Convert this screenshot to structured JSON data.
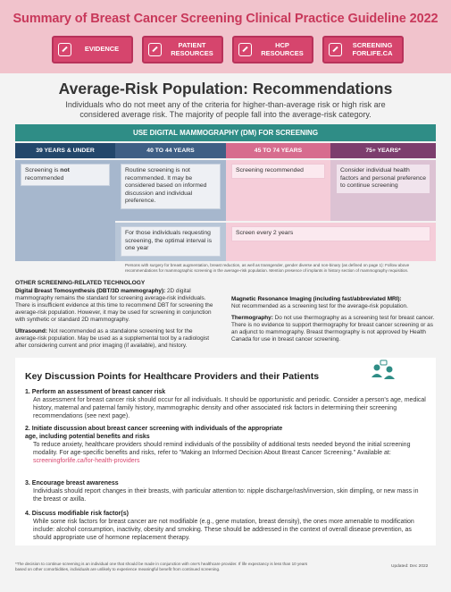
{
  "header": {
    "title": "Summary of Breast Cancer Screening Clinical Practice Guideline 2022",
    "nav": [
      {
        "label": "EVIDENCE",
        "icon": "link-icon"
      },
      {
        "label": "PATIENT RESOURCES",
        "icon": "link-icon"
      },
      {
        "label": "HCP RESOURCES",
        "icon": "link-icon"
      },
      {
        "label": "SCREENING FORLIFE.CA",
        "icon": "link-icon"
      }
    ]
  },
  "page": {
    "title": "Average-Risk Population: Recommendations",
    "intro": "Individuals who do not meet any of the criteria for higher-than-average risk or high risk are considered average risk. The majority of people fall into the average-risk category."
  },
  "table": {
    "heading": "USE DIGITAL MAMMOGRAPHY (DM) FOR SCREENING",
    "ages": [
      "39 YEARS & UNDER",
      "40 TO 44 YEARS",
      "45 TO 74 YEARS",
      "75+ YEARS*"
    ],
    "c1": {
      "pre": "Screening is ",
      "bold": "not",
      "post": " recommended"
    },
    "c2": "Routine screening is not recommended. It may be considered based on informed discussion and individual preference.",
    "c2b": "For those individuals requesting screening, the optimal interval is one year",
    "c3": "Screening recommended",
    "c3b": "Screen every 2 years",
    "c4": "Consider individual health factors and personal preference to continue screening"
  },
  "footnote1": "Persons with surgery for breast augmentation, breast reduction, as well as transgender, gender diverse and non-binary (as defined on page 1): Follow above recommendations for mammographic screening in the average-risk population. Mention presence of implants in history section of mammography requisition.",
  "other": {
    "title": "OTHER SCREENING-RELATED TECHNOLOGY",
    "dbt_head": "Digital Breast Tomosynthesis (DBT/3D mammography):",
    "dbt_body": " 2D digital mammography remains the standard for screening average-risk individuals. There is insufficient evidence at this time to recommend DBT for screening the average-risk population. However, it may be used for screening in conjunction with synthetic or standard 2D mammography.",
    "us_head": "Ultrasound:",
    "us_body": " Not recommended as a standalone screening test for the average-risk population. May be used as a supplemental tool by a radiologist after considering current and prior imaging (if available), and history.",
    "mri_head": "Magnetic Resonance Imaging (including fast/abbreviated MRI):",
    "mri_body": "Not recommended as a screening test for the average-risk population.",
    "thermo_head": "Thermography:",
    "thermo_body": " Do not use thermography as a screening test for breast cancer. There is no evidence to support thermography for breast cancer screening or as an adjunct to mammography. Breast thermography is not approved by Health Canada for use in breast cancer screening."
  },
  "discussion": {
    "title": "Key Discussion Points for Healthcare Providers and their Patients",
    "icon": "people-talking-icon",
    "points": [
      {
        "head": "1. Perform an assessment of breast cancer risk",
        "body": "An assessment for breast cancer risk should occur for all individuals. It should be opportunistic and periodic. Consider a person's age, medical history, maternal and paternal family history, mammographic density and other associated risk factors in determining their screening recommendations (see next page)."
      },
      {
        "head": "2. Initiate discussion about breast cancer screening with individuals of the appropriate age, including potential benefits and risks",
        "body": "To reduce anxiety, healthcare providers should remind individuals of the possibility of additional tests needed beyond the initial screening modality. For age-specific benefits and risks, refer to \"Making an Informed Decision About Breast Cancer Screening.\" Available at: ",
        "link": "screeningforlife.ca/for-health-providers"
      },
      {
        "head": "3. Encourage breast awareness",
        "body": "Individuals should report changes in their breasts, with particular attention to: nipple discharge/rash/inversion, skin dimpling, or new mass in the breast or axilla."
      },
      {
        "head": "4. Discuss modifiable risk factor(s)",
        "body": "While some risk factors for breast cancer are not modifiable (e.g., gene mutation, breast density), the ones more amenable to modification include: alcohol consumption, inactivity, obesity and smoking. These should be addressed in the context of overall disease prevention, as should appropriate use of hormone replacement therapy."
      }
    ]
  },
  "footnote2": "*The decision to continue screening is an individual one that should be made in conjunction with one's healthcare provider. If life expectancy is less than 10 years based on other comorbidities, individuals are unlikely to experience meaningful benefit from continued screening.",
  "updated": "Updated: Dec 2022",
  "colors": {
    "pink": "#d6456d",
    "teal": "#2f8d86",
    "navy": "#23476b",
    "plum": "#7c3d6d"
  }
}
